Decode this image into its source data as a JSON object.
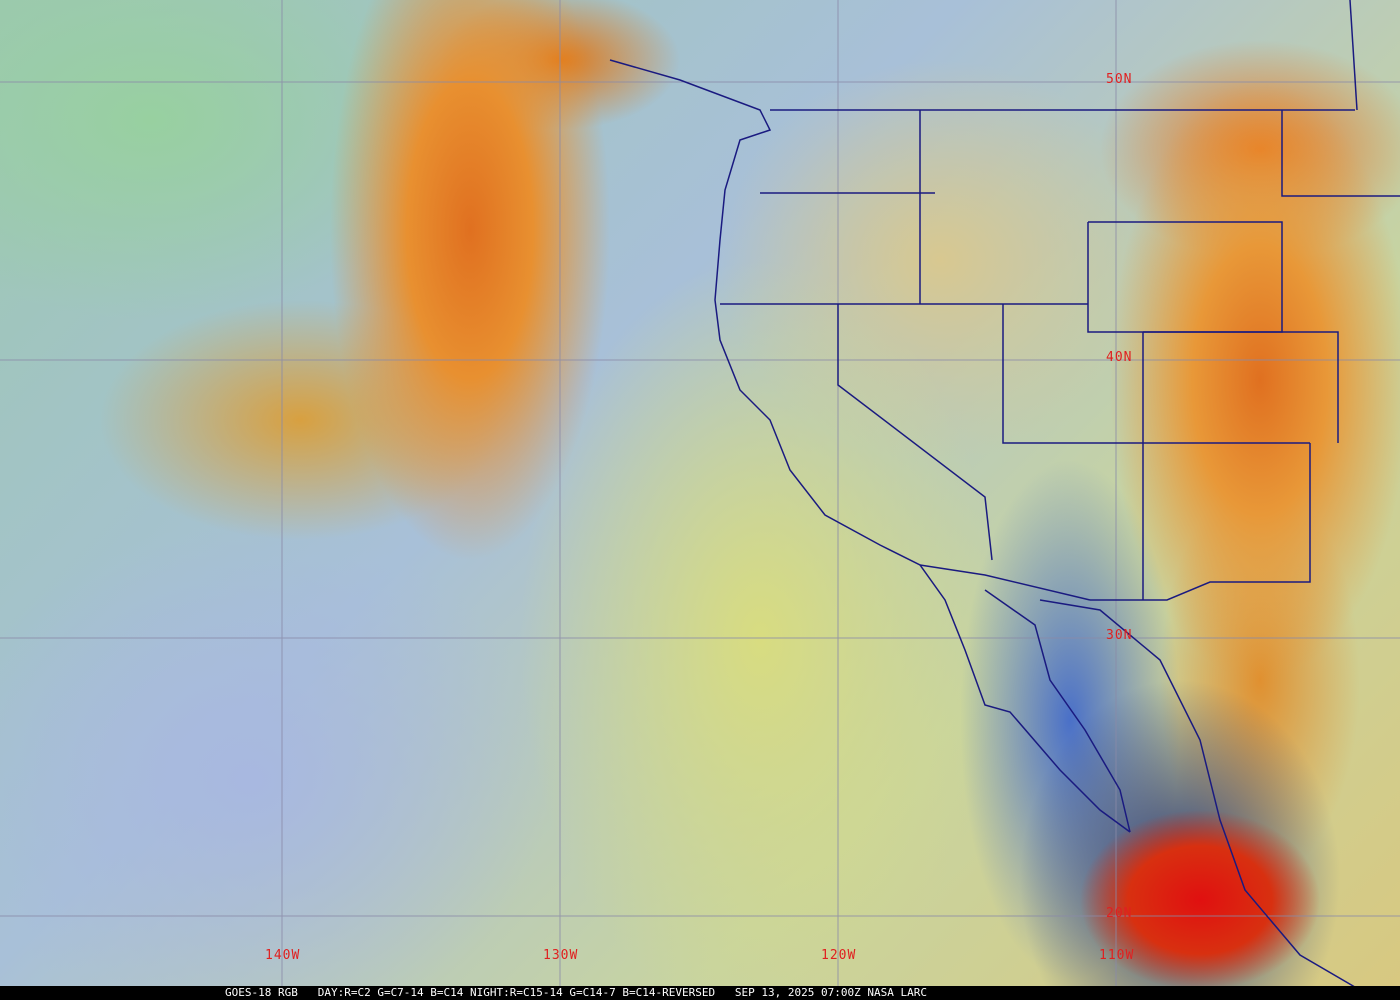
{
  "caption": "GOES-18 RGB   DAY:R=C2 G=C7-14 B=C14 NIGHT:R=C15-14 G=C14-7 B=C14-REVERSED   SEP 13, 2025 07:00Z NASA LARC",
  "grid": {
    "lat_labels": [
      "50N",
      "40N",
      "30N",
      "20N"
    ],
    "lon_labels": [
      "140W",
      "130W",
      "120W",
      "110W"
    ]
  },
  "colors": {
    "grid": "#8a8aa8",
    "boundaries": "#1a1a80",
    "labels": "#e02020"
  }
}
